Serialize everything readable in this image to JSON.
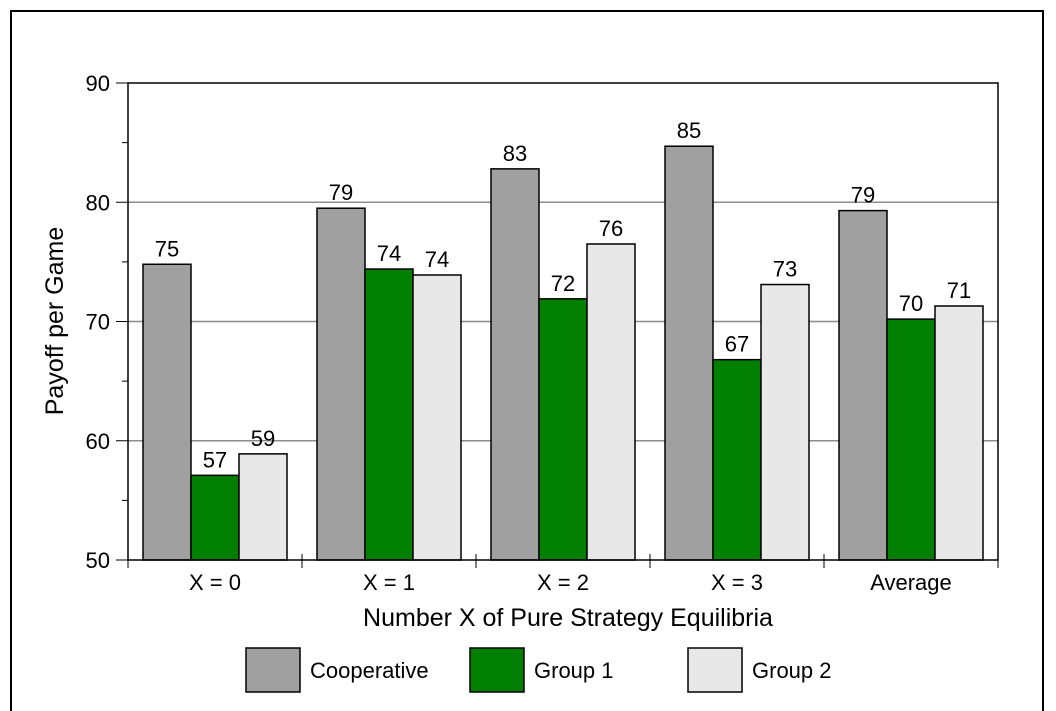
{
  "chart_data": {
    "type": "bar",
    "title": "",
    "xlabel": "Number X of Pure Strategy Equilibria",
    "ylabel": "Payoff per Game",
    "ylim": [
      50,
      90
    ],
    "yticks": [
      "50",
      "60",
      "70",
      "80",
      "90"
    ],
    "grid": "horizontal major",
    "legend_position": "bottom",
    "categories": [
      "X = 0",
      "X = 1",
      "X = 2",
      "X = 3",
      "Average"
    ],
    "series": [
      {
        "name": "Cooperative",
        "color": "#a0a0a0",
        "values": [
          74.8,
          79.5,
          82.8,
          84.7,
          79.3
        ],
        "labels": [
          "75",
          "79",
          "83",
          "85",
          "79"
        ]
      },
      {
        "name": "Group 1",
        "color": "#007f00",
        "values": [
          57.1,
          74.4,
          71.9,
          66.8,
          70.2
        ],
        "labels": [
          "57",
          "74",
          "72",
          "67",
          "70"
        ]
      },
      {
        "name": "Group 2",
        "color": "#e8e8e8",
        "values": [
          58.9,
          73.9,
          76.5,
          73.1,
          71.3
        ],
        "labels": [
          "59",
          "74",
          "76",
          "73",
          "71"
        ]
      }
    ]
  }
}
